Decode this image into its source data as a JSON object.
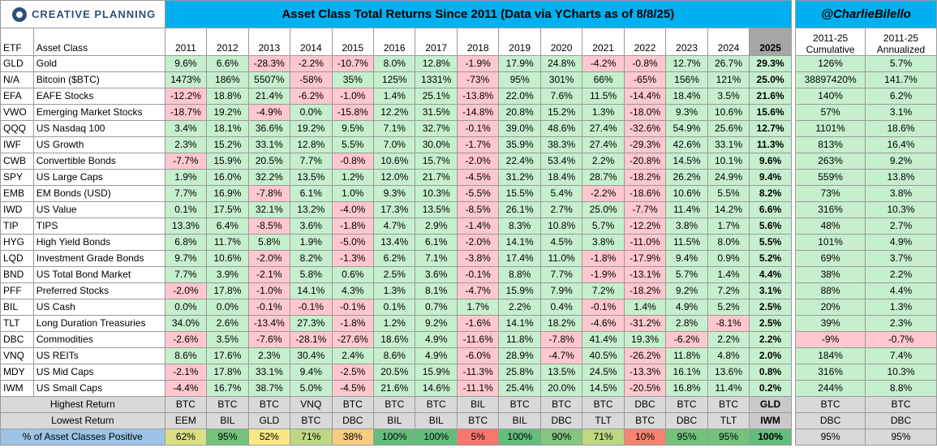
{
  "logo_text": "CREATIVE PLANNING",
  "title": "Asset Class Total Returns Since 2011 (Data via YCharts as of 8/8/25)",
  "handle": "@CharlieBilello",
  "chart_data": {
    "type": "table",
    "columns": [
      "ETF",
      "Asset Class",
      "2011",
      "2012",
      "2013",
      "2014",
      "2015",
      "2016",
      "2017",
      "2018",
      "2019",
      "2020",
      "2021",
      "2022",
      "2023",
      "2024",
      "2025",
      "2011-25 Cumulative",
      "2011-25 Annualized"
    ],
    "rows": [
      {
        "etf": "GLD",
        "name": "Gold",
        "values": [
          "9.6%",
          "6.6%",
          "-28.3%",
          "-2.2%",
          "-10.7%",
          "8.0%",
          "12.8%",
          "-1.9%",
          "17.9%",
          "24.8%",
          "-4.2%",
          "-0.8%",
          "12.7%",
          "26.7%",
          "29.3%",
          "126%",
          "5.7%"
        ]
      },
      {
        "etf": "N/A",
        "name": "Bitcoin ($BTC)",
        "values": [
          "1473%",
          "186%",
          "5507%",
          "-58%",
          "35%",
          "125%",
          "1331%",
          "-73%",
          "95%",
          "301%",
          "66%",
          "-65%",
          "156%",
          "121%",
          "25.0%",
          "38897420%",
          "141.7%"
        ]
      },
      {
        "etf": "EFA",
        "name": "EAFE Stocks",
        "values": [
          "-12.2%",
          "18.8%",
          "21.4%",
          "-6.2%",
          "-1.0%",
          "1.4%",
          "25.1%",
          "-13.8%",
          "22.0%",
          "7.6%",
          "11.5%",
          "-14.4%",
          "18.4%",
          "3.5%",
          "21.6%",
          "140%",
          "6.2%"
        ]
      },
      {
        "etf": "VWO",
        "name": "Emerging Market Stocks",
        "values": [
          "-18.7%",
          "19.2%",
          "-4.9%",
          "0.0%",
          "-15.8%",
          "12.2%",
          "31.5%",
          "-14.8%",
          "20.8%",
          "15.2%",
          "1.3%",
          "-18.0%",
          "9.3%",
          "10.6%",
          "15.6%",
          "57%",
          "3.1%"
        ]
      },
      {
        "etf": "QQQ",
        "name": "US Nasdaq 100",
        "values": [
          "3.4%",
          "18.1%",
          "36.6%",
          "19.2%",
          "9.5%",
          "7.1%",
          "32.7%",
          "-0.1%",
          "39.0%",
          "48.6%",
          "27.4%",
          "-32.6%",
          "54.9%",
          "25.6%",
          "12.7%",
          "1101%",
          "18.6%"
        ]
      },
      {
        "etf": "IWF",
        "name": "US Growth",
        "values": [
          "2.3%",
          "15.2%",
          "33.1%",
          "12.8%",
          "5.5%",
          "7.0%",
          "30.0%",
          "-1.7%",
          "35.9%",
          "38.3%",
          "27.4%",
          "-29.3%",
          "42.6%",
          "33.1%",
          "11.3%",
          "813%",
          "16.4%"
        ]
      },
      {
        "etf": "CWB",
        "name": "Convertible Bonds",
        "values": [
          "-7.7%",
          "15.9%",
          "20.5%",
          "7.7%",
          "-0.8%",
          "10.6%",
          "15.7%",
          "-2.0%",
          "22.4%",
          "53.4%",
          "2.2%",
          "-20.8%",
          "14.5%",
          "10.1%",
          "9.6%",
          "263%",
          "9.2%"
        ]
      },
      {
        "etf": "SPY",
        "name": "US Large Caps",
        "values": [
          "1.9%",
          "16.0%",
          "32.2%",
          "13.5%",
          "1.2%",
          "12.0%",
          "21.7%",
          "-4.5%",
          "31.2%",
          "18.4%",
          "28.7%",
          "-18.2%",
          "26.2%",
          "24.9%",
          "9.4%",
          "559%",
          "13.8%"
        ]
      },
      {
        "etf": "EMB",
        "name": "EM Bonds (USD)",
        "values": [
          "7.7%",
          "16.9%",
          "-7.8%",
          "6.1%",
          "1.0%",
          "9.3%",
          "10.3%",
          "-5.5%",
          "15.5%",
          "5.4%",
          "-2.2%",
          "-18.6%",
          "10.6%",
          "5.5%",
          "8.2%",
          "73%",
          "3.8%"
        ]
      },
      {
        "etf": "IWD",
        "name": "US Value",
        "values": [
          "0.1%",
          "17.5%",
          "32.1%",
          "13.2%",
          "-4.0%",
          "17.3%",
          "13.5%",
          "-8.5%",
          "26.1%",
          "2.7%",
          "25.0%",
          "-7.7%",
          "11.4%",
          "14.2%",
          "6.6%",
          "316%",
          "10.3%"
        ]
      },
      {
        "etf": "TIP",
        "name": "TIPS",
        "values": [
          "13.3%",
          "6.4%",
          "-8.5%",
          "3.6%",
          "-1.8%",
          "4.7%",
          "2.9%",
          "-1.4%",
          "8.3%",
          "10.8%",
          "5.7%",
          "-12.2%",
          "3.8%",
          "1.7%",
          "5.6%",
          "48%",
          "2.7%"
        ]
      },
      {
        "etf": "HYG",
        "name": "High Yield Bonds",
        "values": [
          "6.8%",
          "11.7%",
          "5.8%",
          "1.9%",
          "-5.0%",
          "13.4%",
          "6.1%",
          "-2.0%",
          "14.1%",
          "4.5%",
          "3.8%",
          "-11.0%",
          "11.5%",
          "8.0%",
          "5.5%",
          "101%",
          "4.9%"
        ]
      },
      {
        "etf": "LQD",
        "name": "Investment Grade Bonds",
        "values": [
          "9.7%",
          "10.6%",
          "-2.0%",
          "8.2%",
          "-1.3%",
          "6.2%",
          "7.1%",
          "-3.8%",
          "17.4%",
          "11.0%",
          "-1.8%",
          "-17.9%",
          "9.4%",
          "0.9%",
          "5.2%",
          "69%",
          "3.7%"
        ]
      },
      {
        "etf": "BND",
        "name": "US Total Bond Market",
        "values": [
          "7.7%",
          "3.9%",
          "-2.1%",
          "5.8%",
          "0.6%",
          "2.5%",
          "3.6%",
          "-0.1%",
          "8.8%",
          "7.7%",
          "-1.9%",
          "-13.1%",
          "5.7%",
          "1.4%",
          "4.4%",
          "38%",
          "2.2%"
        ]
      },
      {
        "etf": "PFF",
        "name": "Preferred Stocks",
        "values": [
          "-2.0%",
          "17.8%",
          "-1.0%",
          "14.1%",
          "4.3%",
          "1.3%",
          "8.1%",
          "-4.7%",
          "15.9%",
          "7.9%",
          "7.2%",
          "-18.2%",
          "9.2%",
          "7.2%",
          "3.1%",
          "88%",
          "4.4%"
        ]
      },
      {
        "etf": "BIL",
        "name": "US Cash",
        "values": [
          "0.0%",
          "0.0%",
          "-0.1%",
          "-0.1%",
          "-0.1%",
          "0.1%",
          "0.7%",
          "1.7%",
          "2.2%",
          "0.4%",
          "-0.1%",
          "1.4%",
          "4.9%",
          "5.2%",
          "2.5%",
          "20%",
          "1.3%"
        ]
      },
      {
        "etf": "TLT",
        "name": "Long Duration Treasuries",
        "values": [
          "34.0%",
          "2.6%",
          "-13.4%",
          "27.3%",
          "-1.8%",
          "1.2%",
          "9.2%",
          "-1.6%",
          "14.1%",
          "18.2%",
          "-4.6%",
          "-31.2%",
          "2.8%",
          "-8.1%",
          "2.5%",
          "39%",
          "2.3%"
        ]
      },
      {
        "etf": "DBC",
        "name": "Commodities",
        "values": [
          "-2.6%",
          "3.5%",
          "-7.6%",
          "-28.1%",
          "-27.6%",
          "18.6%",
          "4.9%",
          "-11.6%",
          "11.8%",
          "-7.8%",
          "41.4%",
          "19.3%",
          "-6.2%",
          "2.2%",
          "2.2%",
          "-9%",
          "-0.7%"
        ]
      },
      {
        "etf": "VNQ",
        "name": "US REITs",
        "values": [
          "8.6%",
          "17.6%",
          "2.3%",
          "30.4%",
          "2.4%",
          "8.6%",
          "4.9%",
          "-6.0%",
          "28.9%",
          "-4.7%",
          "40.5%",
          "-26.2%",
          "11.8%",
          "4.8%",
          "2.0%",
          "184%",
          "7.4%"
        ]
      },
      {
        "etf": "MDY",
        "name": "US Mid Caps",
        "values": [
          "-2.1%",
          "17.8%",
          "33.1%",
          "9.4%",
          "-2.5%",
          "20.5%",
          "15.9%",
          "-11.3%",
          "25.8%",
          "13.5%",
          "24.5%",
          "-13.3%",
          "16.1%",
          "13.6%",
          "0.8%",
          "316%",
          "10.3%"
        ]
      },
      {
        "etf": "IWM",
        "name": "US Small Caps",
        "values": [
          "-4.4%",
          "16.7%",
          "38.7%",
          "5.0%",
          "-4.5%",
          "21.6%",
          "14.6%",
          "-11.1%",
          "25.4%",
          "20.0%",
          "14.5%",
          "-20.5%",
          "16.8%",
          "11.4%",
          "0.2%",
          "244%",
          "8.8%"
        ]
      }
    ],
    "summary": [
      {
        "label": "Highest Return",
        "values": [
          "BTC",
          "BTC",
          "BTC",
          "VNQ",
          "BTC",
          "BTC",
          "BTC",
          "BIL",
          "BTC",
          "BTC",
          "BTC",
          "DBC",
          "BTC",
          "BTC",
          "GLD",
          "BTC",
          "BTC"
        ]
      },
      {
        "label": "Lowest Return",
        "values": [
          "EEM",
          "BIL",
          "GLD",
          "BTC",
          "DBC",
          "BIL",
          "BIL",
          "BTC",
          "BIL",
          "DBC",
          "TLT",
          "BTC",
          "DBC",
          "TLT",
          "IWM",
          "DBC",
          "DBC"
        ]
      },
      {
        "label": "% of Asset Classes Positive",
        "values": [
          "62%",
          "95%",
          "52%",
          "71%",
          "38%",
          "100%",
          "100%",
          "5%",
          "100%",
          "90%",
          "71%",
          "10%",
          "95%",
          "95%",
          "100%",
          "95%",
          "95%"
        ]
      }
    ],
    "colors": {
      "title_bg": "#00b0f0",
      "positive": "#c6efce",
      "negative": "#ffc7ce",
      "highlight_2025": "#a6a6a6",
      "summary_bg": "#d9d9d9",
      "pct_label_bg": "#9dc3e6"
    }
  }
}
